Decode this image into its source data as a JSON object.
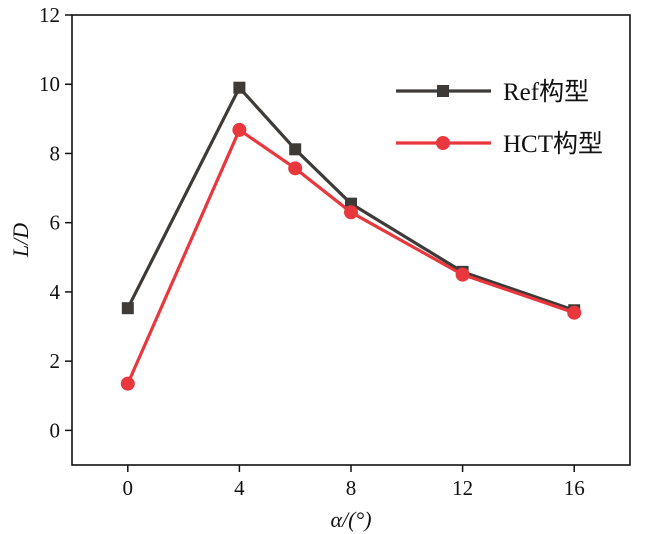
{
  "chart_data": {
    "type": "line",
    "title": "",
    "xlabel": "α/(°)",
    "ylabel": "L/D",
    "xlim": [
      -2,
      18
    ],
    "ylim": [
      -1,
      12
    ],
    "xticks": [
      0,
      4,
      8,
      12,
      16
    ],
    "yticks": [
      0,
      2,
      4,
      6,
      8,
      10,
      12
    ],
    "grid": false,
    "legend_position": "top-right",
    "x": [
      0,
      4,
      6,
      8,
      12,
      16
    ],
    "series": [
      {
        "name": "Ref构型",
        "marker": "square",
        "color": "#3d3a38",
        "values": [
          3.53,
          9.9,
          8.12,
          6.55,
          4.58,
          3.47
        ]
      },
      {
        "name": "HCT构型",
        "marker": "circle",
        "color": "#e8383d",
        "values": [
          1.35,
          8.68,
          7.57,
          6.3,
          4.5,
          3.4
        ]
      }
    ]
  }
}
